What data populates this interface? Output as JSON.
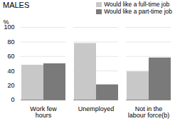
{
  "chart_data": {
    "type": "bar",
    "title": "MALES",
    "ylabel": "%",
    "categories": [
      "Work few\nhours",
      "Unemployed",
      "Not in the\nlabour force(b)"
    ],
    "series": [
      {
        "name": "Would like a full-time job",
        "color": "#c8c8c8",
        "values": [
          48,
          78,
          39
        ]
      },
      {
        "name": "Would like a part-time job",
        "color": "#7a7a7a",
        "values": [
          50,
          21,
          58
        ]
      }
    ],
    "ylim": [
      0,
      100
    ],
    "yticks": [
      0,
      20,
      40,
      60,
      80,
      100
    ],
    "grid": true,
    "legend": "upper right"
  }
}
